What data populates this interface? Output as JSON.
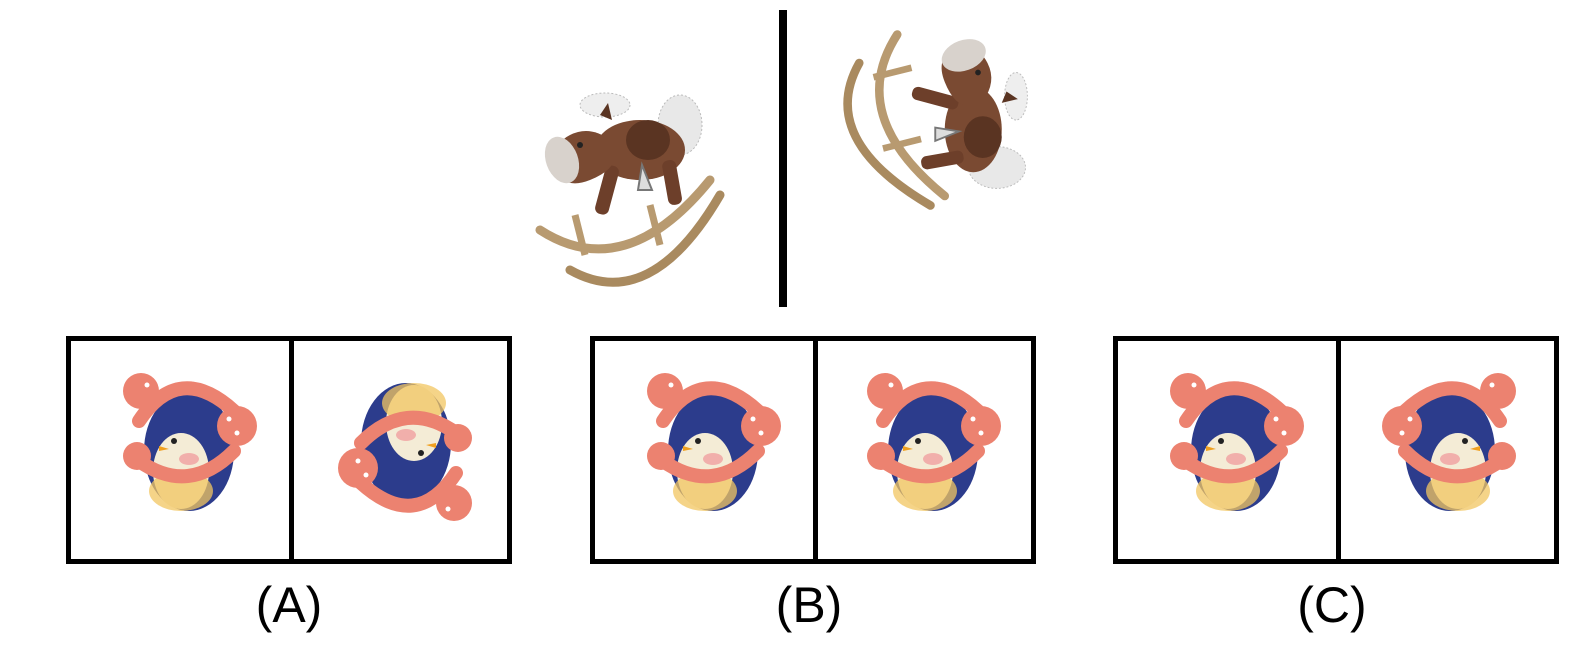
{
  "options": [
    {
      "id": "A",
      "label": "(A)"
    },
    {
      "id": "B",
      "label": "(B)"
    },
    {
      "id": "C",
      "label": "(C)"
    }
  ],
  "colors": {
    "horse_brown": "#7a4a32",
    "horse_dark": "#5a3422",
    "horse_face": "#d8d2cc",
    "rocker_wood": "#b89a70",
    "penguin_body": "#2c3c8c",
    "penguin_belly": "#f4ecd6",
    "penguin_yellow": "#f2c660",
    "earmuff": "#ec8270",
    "cheek": "#f0a0a0"
  },
  "icons": [
    "rocking-horse-image",
    "penguin-earmuffs-image"
  ]
}
